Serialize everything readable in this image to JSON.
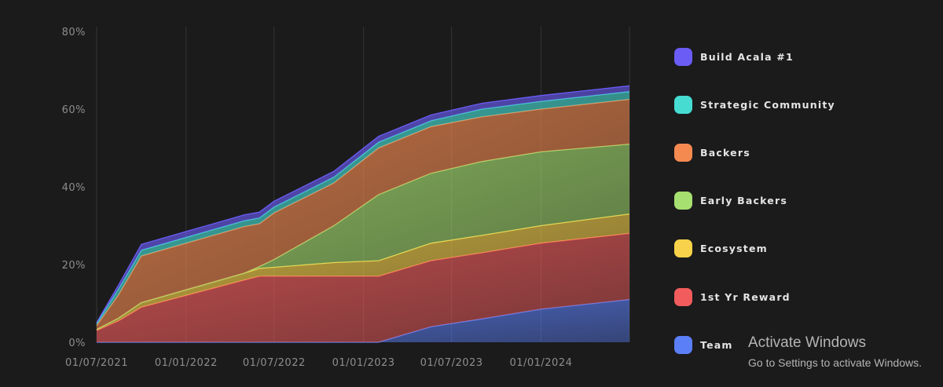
{
  "chart_data": {
    "type": "area",
    "stacked": true,
    "x": [
      "2021-07-01",
      "2021-08-15",
      "2021-10-01",
      "2022-05-01",
      "2022-06-01",
      "2022-07-01",
      "2022-11-01",
      "2023-02-01",
      "2023-05-20",
      "2023-09-01",
      "2024-01-01",
      "2024-07-01"
    ],
    "x_tick_labels": [
      "01/07/2021",
      "01/01/2022",
      "01/07/2022",
      "01/01/2023",
      "01/07/2023",
      "01/01/2024"
    ],
    "x_tick_dates": [
      "2021-07-01",
      "2022-01-01",
      "2022-07-01",
      "2023-01-01",
      "2023-07-01",
      "2024-01-01"
    ],
    "ylim": [
      0,
      80
    ],
    "y_ticks": [
      0,
      20,
      40,
      60,
      80
    ],
    "y_tick_labels": [
      "0%",
      "20%",
      "40%",
      "60%",
      "80%"
    ],
    "grid": "vertical",
    "legend_position": "right",
    "series": [
      {
        "name": "Team",
        "color": "#5b7ff7",
        "values": [
          0,
          0,
          0,
          0,
          0,
          0,
          0,
          0,
          4,
          6,
          8.5,
          11
        ]
      },
      {
        "name": "1st Yr Reward",
        "color": "#f25c5c",
        "values": [
          3,
          5.5,
          9,
          16,
          17,
          17,
          17,
          17,
          17,
          17,
          17,
          17
        ]
      },
      {
        "name": "Ecosystem",
        "color": "#f8d24a",
        "values": [
          0.3,
          0.7,
          1.2,
          1.8,
          2,
          2.3,
          3.5,
          4,
          4.5,
          4.5,
          4.5,
          5
        ]
      },
      {
        "name": "Early Backers",
        "color": "#a6e070",
        "values": [
          0,
          0,
          0,
          0,
          0.5,
          2,
          9.5,
          17,
          18,
          19,
          19,
          18
        ]
      },
      {
        "name": "Backers",
        "color": "#f48a50",
        "values": [
          1,
          6,
          12,
          12,
          11,
          12,
          11,
          12,
          12,
          11.5,
          11,
          11.5
        ]
      },
      {
        "name": "Strategic Community",
        "color": "#46dcd2",
        "values": [
          0.5,
          1.5,
          1.5,
          1.5,
          1.5,
          1.5,
          1.5,
          1.5,
          1.5,
          2,
          2,
          2
        ]
      },
      {
        "name": "Build Acala #1",
        "color": "#6a5cf5",
        "values": [
          0.3,
          1,
          1.5,
          1.5,
          1.5,
          1.5,
          1.5,
          1.5,
          1.5,
          1.5,
          1.5,
          1.5
        ]
      }
    ]
  },
  "watermark": {
    "title": "Activate Windows",
    "subtitle": "Go to Settings to activate Windows."
  }
}
